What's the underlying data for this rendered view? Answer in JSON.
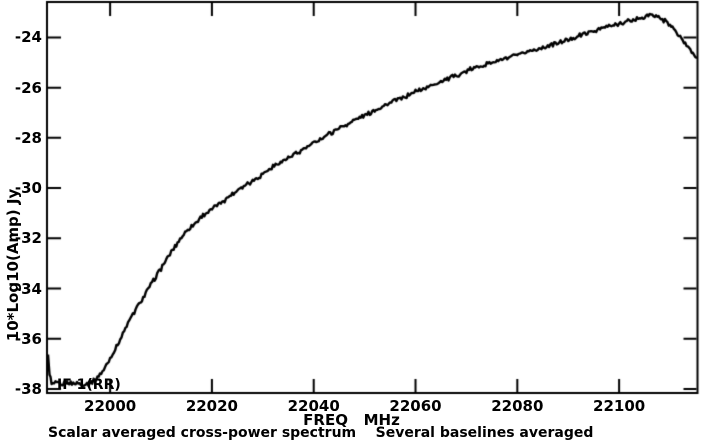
{
  "chart_data": {
    "type": "line",
    "title_parts": [
      "Scalar averaged cross-power spectrum",
      "Several baselines averaged"
    ],
    "caption": "Scalar averaged cross-power spectrum    Several baselines averaged",
    "xlabel": "FREQ   MHz",
    "ylabel": "10*Log10(Amp) Jy",
    "annotation": "IF 1(RR)",
    "xlim": [
      21987.6,
      22115.4
    ],
    "ylim": [
      -38.16,
      -22.59
    ],
    "x_ticks": [
      22000,
      22020,
      22040,
      22060,
      22080,
      22100
    ],
    "y_ticks": [
      -24,
      -26,
      -28,
      -30,
      -32,
      -34,
      -36,
      -38
    ],
    "grid": false,
    "legend": "none",
    "colors": {
      "foreground": "#000000",
      "background": "#ffffff"
    },
    "noise_amplitude_db": 0.07,
    "series": [
      {
        "name": "averaged cross-power spectrum",
        "points": [
          [
            21987.8,
            -36.7
          ],
          [
            21988.1,
            -37.4
          ],
          [
            21988.5,
            -37.8
          ],
          [
            21989.5,
            -37.75
          ],
          [
            21990.5,
            -37.85
          ],
          [
            21991.5,
            -37.7
          ],
          [
            21992.5,
            -37.8
          ],
          [
            21993.5,
            -37.75
          ],
          [
            21994.5,
            -37.85
          ],
          [
            21995.5,
            -37.8
          ],
          [
            21996.5,
            -37.7
          ],
          [
            21997.5,
            -37.55
          ],
          [
            21999.0,
            -37.15
          ],
          [
            22000.5,
            -36.6
          ],
          [
            22002.0,
            -36.0
          ],
          [
            22003.5,
            -35.4
          ],
          [
            22005.0,
            -34.85
          ],
          [
            22006.5,
            -34.35
          ],
          [
            22008.0,
            -33.85
          ],
          [
            22009.5,
            -33.35
          ],
          [
            22011.0,
            -32.9
          ],
          [
            22012.5,
            -32.4
          ],
          [
            22014.0,
            -31.95
          ],
          [
            22015.5,
            -31.6
          ],
          [
            22017.0,
            -31.35
          ],
          [
            22018.5,
            -31.05
          ],
          [
            22020.5,
            -30.75
          ],
          [
            22023.0,
            -30.4
          ],
          [
            22025.5,
            -30.0
          ],
          [
            22028.0,
            -29.7
          ],
          [
            22030.0,
            -29.45
          ],
          [
            22032.0,
            -29.15
          ],
          [
            22034.0,
            -28.9
          ],
          [
            22036.0,
            -28.7
          ],
          [
            22038.0,
            -28.45
          ],
          [
            22040.0,
            -28.2
          ],
          [
            22042.5,
            -27.9
          ],
          [
            22045.0,
            -27.6
          ],
          [
            22047.5,
            -27.35
          ],
          [
            22050.0,
            -27.1
          ],
          [
            22052.5,
            -26.85
          ],
          [
            22055.0,
            -26.6
          ],
          [
            22057.5,
            -26.4
          ],
          [
            22060.0,
            -26.15
          ],
          [
            22062.5,
            -25.95
          ],
          [
            22065.0,
            -25.75
          ],
          [
            22067.5,
            -25.55
          ],
          [
            22070.0,
            -25.35
          ],
          [
            22072.5,
            -25.15
          ],
          [
            22075.0,
            -25.0
          ],
          [
            22077.5,
            -24.85
          ],
          [
            22080.0,
            -24.72
          ],
          [
            22082.5,
            -24.55
          ],
          [
            22085.0,
            -24.4
          ],
          [
            22087.5,
            -24.25
          ],
          [
            22090.0,
            -24.1
          ],
          [
            22092.5,
            -23.9
          ],
          [
            22095.0,
            -23.75
          ],
          [
            22097.0,
            -23.6
          ],
          [
            22099.0,
            -23.5
          ],
          [
            22101.0,
            -23.4
          ],
          [
            22103.0,
            -23.3
          ],
          [
            22104.5,
            -23.2
          ],
          [
            22106.0,
            -23.12
          ],
          [
            22107.5,
            -23.15
          ],
          [
            22109.0,
            -23.35
          ],
          [
            22110.5,
            -23.6
          ],
          [
            22112.0,
            -24.0
          ],
          [
            22113.5,
            -24.35
          ],
          [
            22114.5,
            -24.6
          ],
          [
            22115.4,
            -24.8
          ]
        ]
      }
    ]
  }
}
